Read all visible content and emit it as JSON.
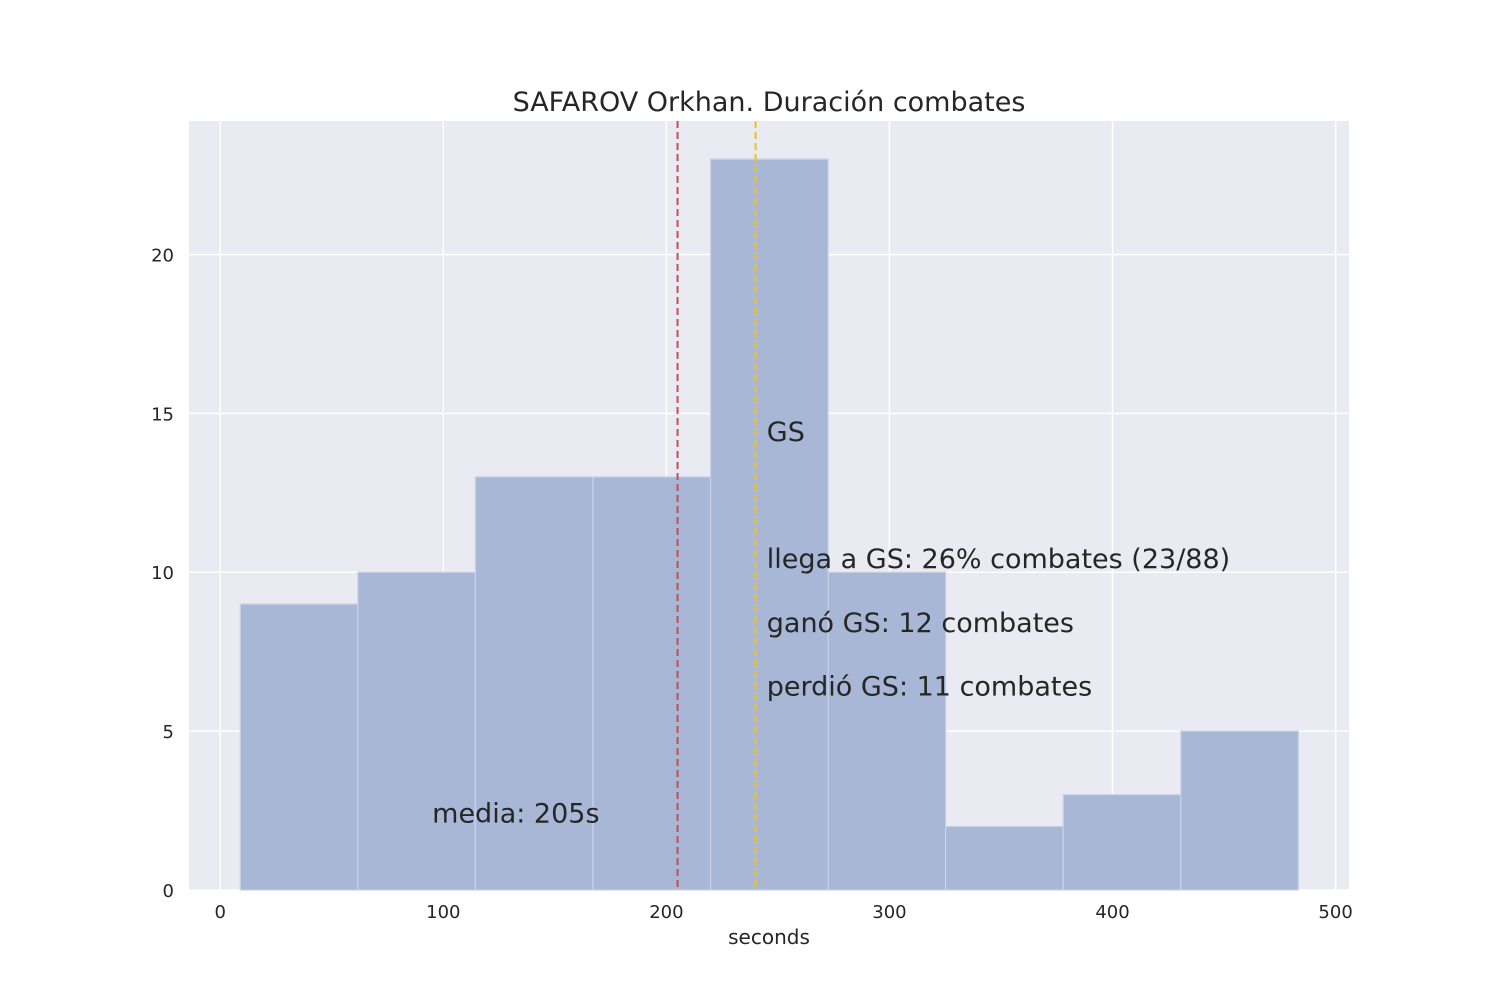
{
  "chart_data": {
    "type": "bar",
    "title": "SAFAROV Orkhan. Duración combates",
    "xlabel": "seconds",
    "ylabel": "",
    "xlim": [
      -14,
      506
    ],
    "ylim": [
      0,
      24.2
    ],
    "xticks": [
      0,
      100,
      200,
      300,
      400,
      500
    ],
    "yticks": [
      0,
      5,
      10,
      15,
      20
    ],
    "grid": true,
    "bins": [
      {
        "x0": 9,
        "x1": 61.7,
        "count": 9
      },
      {
        "x0": 61.7,
        "x1": 114.4,
        "count": 10
      },
      {
        "x0": 114.4,
        "x1": 167.1,
        "count": 13
      },
      {
        "x0": 167.1,
        "x1": 219.8,
        "count": 13
      },
      {
        "x0": 219.8,
        "x1": 272.5,
        "count": 23
      },
      {
        "x0": 272.5,
        "x1": 325.2,
        "count": 10
      },
      {
        "x0": 325.2,
        "x1": 377.9,
        "count": 2
      },
      {
        "x0": 377.9,
        "x1": 430.6,
        "count": 3
      },
      {
        "x0": 430.6,
        "x1": 483.3,
        "count": 5
      }
    ],
    "reference_lines": [
      {
        "x": 205,
        "color": "#c44e52",
        "style": "dashed"
      },
      {
        "x": 240,
        "color": "#f1c40f",
        "style": "dashed"
      }
    ],
    "annotations": [
      {
        "text": "media: 205s",
        "x": 95,
        "y": 2.0,
        "color": "#c44e52"
      },
      {
        "text": "GS",
        "x": 245,
        "y": 14.0,
        "color": "#262626"
      },
      {
        "text": "llega a GS: 26% combates (23/88)",
        "x": 245,
        "y": 10.0,
        "color": "#262626"
      },
      {
        "text": "ganó GS: 12 combates",
        "x": 245,
        "y": 8.0,
        "color": "#262626"
      },
      {
        "text": "perdió GS: 11 combates",
        "x": 245,
        "y": 6.0,
        "color": "#262626"
      }
    ],
    "colors": {
      "bar_fill": "#a8b7d6",
      "bar_edge": "#c9d2e6",
      "plot_bg": "#eaeaf2",
      "grid": "#ffffff"
    }
  }
}
